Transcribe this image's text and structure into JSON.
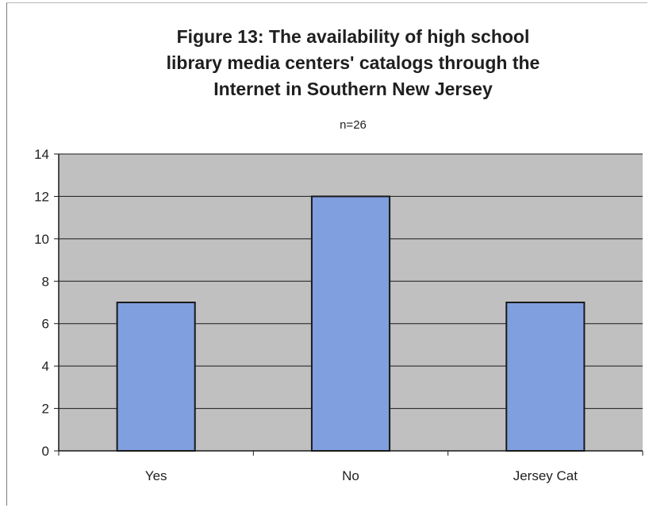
{
  "chart_data": {
    "type": "bar",
    "title_lines": [
      "Figure 13: The availability of high school",
      "library media centers' catalogs through the",
      "Internet in Southern New Jersey"
    ],
    "subtitle": "n=26",
    "categories": [
      "Yes",
      "No",
      "Jersey Cat"
    ],
    "values": [
      7,
      12,
      7
    ],
    "ylim": [
      0,
      14
    ],
    "yticks": [
      0,
      2,
      4,
      6,
      8,
      10,
      12,
      14
    ],
    "xlabel": "",
    "ylabel": "",
    "grid": true,
    "legend": "none"
  },
  "colors": {
    "plot_background": "#c0c0c0",
    "bar_fill": "#7f9fdf",
    "bar_stroke": "#1a1a1a",
    "gridline": "#1a1a1a",
    "axis": "#1a1a1a"
  }
}
